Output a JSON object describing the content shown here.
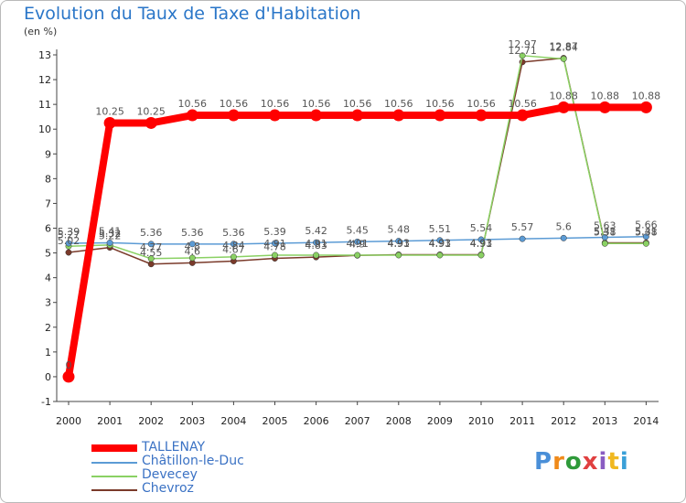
{
  "title": "Evolution du Taux de Taxe d'Habitation",
  "unit_label": "(en %)",
  "logo": {
    "text": "Proxiti",
    "letter_colors": [
      "#4a8fd8",
      "#f08a1a",
      "#2f9a3a",
      "#e04040",
      "#8a5cc2",
      "#f0b820",
      "#3aa0d8"
    ]
  },
  "chart_data": {
    "type": "line",
    "title": "Evolution du Taux de Taxe d'Habitation",
    "ylabel": "(en %)",
    "x": [
      "2000",
      "2001",
      "2002",
      "2003",
      "2004",
      "2005",
      "2006",
      "2007",
      "2008",
      "2009",
      "2010",
      "2011",
      "2012",
      "2013",
      "2014"
    ],
    "ylim": [
      -1,
      13
    ],
    "yticks": [
      "-1",
      "0",
      "1",
      "2",
      "3",
      "4",
      "5",
      "6",
      "7",
      "8",
      "9",
      "10",
      "11",
      "12",
      "13"
    ],
    "grid": false,
    "legend_position": "bottom-left",
    "series": [
      {
        "name": "TALLENAY",
        "color": "#ff0000",
        "values": [
          0,
          10.25,
          10.25,
          10.56,
          10.56,
          10.56,
          10.56,
          10.56,
          10.56,
          10.56,
          10.56,
          10.56,
          10.88,
          10.88,
          10.88
        ],
        "labels": [
          "0",
          "10.25",
          "10.25",
          "10.56",
          "10.56",
          "10.56",
          "10.56",
          "10.56",
          "10.56",
          "10.56",
          "10.56",
          "10.56",
          "10.88",
          "10.88",
          "10.88"
        ]
      },
      {
        "name": "Châtillon-le-Duc",
        "color": "#5b9bd5",
        "values": [
          5.39,
          5.41,
          5.36,
          5.36,
          5.36,
          5.39,
          5.42,
          5.45,
          5.48,
          5.51,
          5.54,
          5.57,
          5.6,
          5.63,
          5.66
        ],
        "labels": [
          "5.39",
          "5.41",
          "5.36",
          "5.36",
          "5.36",
          "5.39",
          "5.42",
          "5.45",
          "5.48",
          "5.51",
          "5.54",
          "5.57",
          "5.6",
          "5.63",
          "5.66"
        ]
      },
      {
        "name": "Devecey",
        "color": "#8ad163",
        "values": [
          5.27,
          5.32,
          4.77,
          4.8,
          4.84,
          4.91,
          4.91,
          4.91,
          4.91,
          4.91,
          4.91,
          12.97,
          12.84,
          5.38,
          5.38
        ],
        "labels": [
          "5.27",
          "5.32",
          "4.77",
          "4.8",
          "4.84",
          "4.91",
          "4.91",
          "4.91",
          "4.91",
          "4.91",
          "4.91",
          "12.97",
          "12.84",
          "5.38",
          "5.38"
        ]
      },
      {
        "name": "Chevroz",
        "color": "#7a3a2a",
        "values": [
          5.02,
          5.22,
          4.55,
          4.6,
          4.67,
          4.78,
          4.83,
          4.9,
          4.93,
          4.93,
          4.93,
          12.71,
          12.87,
          5.41,
          5.41
        ],
        "labels": [
          "5.02",
          "5.22",
          "4.55",
          "4.6",
          "4.67",
          "4.78",
          "4.83",
          "4.9",
          "4.93",
          "4.93",
          "4.93",
          "12.71",
          "12.87",
          "5.41",
          "5.41"
        ]
      }
    ]
  }
}
